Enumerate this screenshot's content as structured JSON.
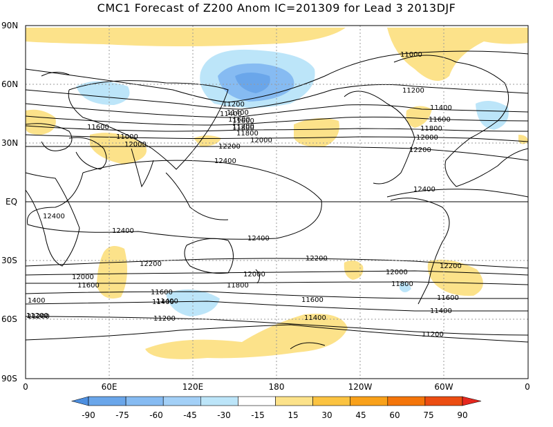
{
  "title": "CMC1 Forecast of Z200 Anom IC=201309 for Lead 3 2013DJF",
  "axes": {
    "y_ticks": [
      "90N",
      "60N",
      "30N",
      "EQ",
      "30S",
      "60S",
      "90S"
    ],
    "x_ticks": [
      "0",
      "60E",
      "120E",
      "180",
      "120W",
      "60W",
      "0"
    ],
    "grid": true
  },
  "contour_labels": [
    "11000",
    "11200",
    "11400",
    "11600",
    "11800",
    "11600",
    "12000",
    "11200",
    "11400",
    "11600",
    "11800",
    "12000",
    "12200",
    "11000",
    "11200",
    "11400",
    "11600",
    "11800",
    "12000",
    "12200",
    "12400",
    "12400",
    "12400",
    "12400",
    "12400",
    "12200",
    "12000",
    "11600",
    "11400",
    "11200",
    "12200",
    "12200",
    "12000",
    "11800",
    "11600",
    "11400",
    "11200",
    "11600",
    "11400",
    "11200",
    "1400",
    "11200",
    "12000",
    "11800",
    "11600",
    "11400",
    "11200"
  ],
  "colorbar": {
    "ticks": [
      "-90",
      "-75",
      "-60",
      "-45",
      "-30",
      "-15",
      "15",
      "30",
      "45",
      "60",
      "75",
      "90"
    ],
    "colors": [
      "#4d8fe0",
      "#6aa6ea",
      "#86bbf2",
      "#a3d0f7",
      "#bce5f9",
      "#ffffff",
      "#fce28a",
      "#fbc341",
      "#f9a11a",
      "#f4750a",
      "#ec4d12",
      "#e6281f"
    ]
  }
}
